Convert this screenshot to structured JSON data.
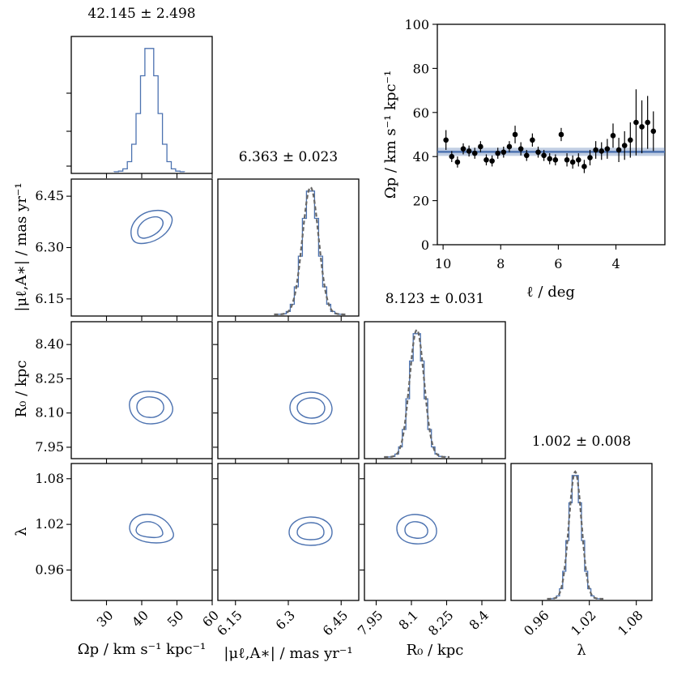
{
  "chart_data": [
    {
      "type": "histogram",
      "panel": "hist-omega",
      "title": "42.145 ± 2.498",
      "mean": 42.145,
      "sigma": 2.498,
      "xlim": [
        20,
        60
      ],
      "xticks": [
        30,
        40,
        50,
        60
      ]
    },
    {
      "type": "histogram",
      "panel": "hist-mu",
      "title": "6.363 ± 0.023",
      "mean": 6.363,
      "sigma": 0.023,
      "xlim": [
        6.1,
        6.5
      ],
      "xticks": [
        6.15,
        6.3,
        6.45
      ],
      "gaussian_fit": true
    },
    {
      "type": "histogram",
      "panel": "hist-r0",
      "title": "8.123 ± 0.031",
      "mean": 8.123,
      "sigma": 0.031,
      "xlim": [
        7.9,
        8.5
      ],
      "xticks": [
        7.95,
        8.1,
        8.25,
        8.4
      ],
      "gaussian_fit": true
    },
    {
      "type": "histogram",
      "panel": "hist-lambda",
      "title": "1.002 ± 0.008",
      "mean": 1.002,
      "sigma": 0.008,
      "xlim": [
        0.92,
        1.1
      ],
      "xticks": [
        0.96,
        1.02,
        1.08
      ],
      "gaussian_fit": true
    },
    {
      "type": "scatter",
      "panel": "pattern-speed",
      "xlabel": "ℓ / deg",
      "ylabel": "Ωp / km s⁻¹ kpc⁻¹",
      "xlim": [
        10.2,
        2.3
      ],
      "ylim": [
        0,
        100
      ],
      "xticks": [
        10,
        8,
        6,
        4
      ],
      "yticks": [
        0,
        20,
        40,
        60,
        80,
        100
      ],
      "fit": {
        "value": 42.145,
        "band": [
          40.3,
          44.0
        ]
      },
      "points": [
        {
          "x": 9.9,
          "y": 47.5,
          "err": 4.5
        },
        {
          "x": 9.7,
          "y": 40.0,
          "err": 2.5
        },
        {
          "x": 9.5,
          "y": 37.5,
          "err": 2.5
        },
        {
          "x": 9.3,
          "y": 43.5,
          "err": 2.5
        },
        {
          "x": 9.1,
          "y": 42.5,
          "err": 2.5
        },
        {
          "x": 8.9,
          "y": 41.5,
          "err": 2.5
        },
        {
          "x": 8.7,
          "y": 44.5,
          "err": 2.5
        },
        {
          "x": 8.5,
          "y": 38.5,
          "err": 2.5
        },
        {
          "x": 8.3,
          "y": 38.0,
          "err": 2.5
        },
        {
          "x": 8.1,
          "y": 41.5,
          "err": 2.5
        },
        {
          "x": 7.9,
          "y": 42.0,
          "err": 2.5
        },
        {
          "x": 7.7,
          "y": 44.5,
          "err": 2.5
        },
        {
          "x": 7.5,
          "y": 50.0,
          "err": 4.0
        },
        {
          "x": 7.3,
          "y": 43.5,
          "err": 3.0
        },
        {
          "x": 7.1,
          "y": 40.5,
          "err": 2.5
        },
        {
          "x": 6.9,
          "y": 47.5,
          "err": 3.0
        },
        {
          "x": 6.7,
          "y": 42.0,
          "err": 2.5
        },
        {
          "x": 6.5,
          "y": 40.5,
          "err": 2.5
        },
        {
          "x": 6.3,
          "y": 39.0,
          "err": 2.5
        },
        {
          "x": 6.1,
          "y": 38.5,
          "err": 2.5
        },
        {
          "x": 5.9,
          "y": 50.0,
          "err": 3.0
        },
        {
          "x": 5.7,
          "y": 38.5,
          "err": 3.0
        },
        {
          "x": 5.5,
          "y": 37.5,
          "err": 3.0
        },
        {
          "x": 5.3,
          "y": 38.5,
          "err": 3.0
        },
        {
          "x": 5.1,
          "y": 35.5,
          "err": 3.0
        },
        {
          "x": 4.9,
          "y": 39.5,
          "err": 3.5
        },
        {
          "x": 4.7,
          "y": 43.0,
          "err": 4.0
        },
        {
          "x": 4.5,
          "y": 42.5,
          "err": 4.0
        },
        {
          "x": 4.3,
          "y": 43.5,
          "err": 4.5
        },
        {
          "x": 4.1,
          "y": 49.5,
          "err": 5.5
        },
        {
          "x": 3.9,
          "y": 43.0,
          "err": 5.5
        },
        {
          "x": 3.7,
          "y": 45.0,
          "err": 6.5
        },
        {
          "x": 3.5,
          "y": 47.5,
          "err": 8.0
        },
        {
          "x": 3.3,
          "y": 55.5,
          "err": 15.0
        },
        {
          "x": 3.1,
          "y": 53.5,
          "err": 12.0
        },
        {
          "x": 2.9,
          "y": 55.5,
          "err": 12.0
        },
        {
          "x": 2.7,
          "y": 51.5,
          "err": 9.0
        }
      ]
    }
  ],
  "labels": {
    "omega": "Ωp / km s⁻¹ kpc⁻¹",
    "mu": "|μℓ,A∗| / mas yr⁻¹",
    "r0": "R₀ / kpc",
    "lambda": "λ",
    "ell": "ℓ / deg"
  },
  "colors": {
    "contour": "#4c72b0",
    "fit": "#666666"
  }
}
